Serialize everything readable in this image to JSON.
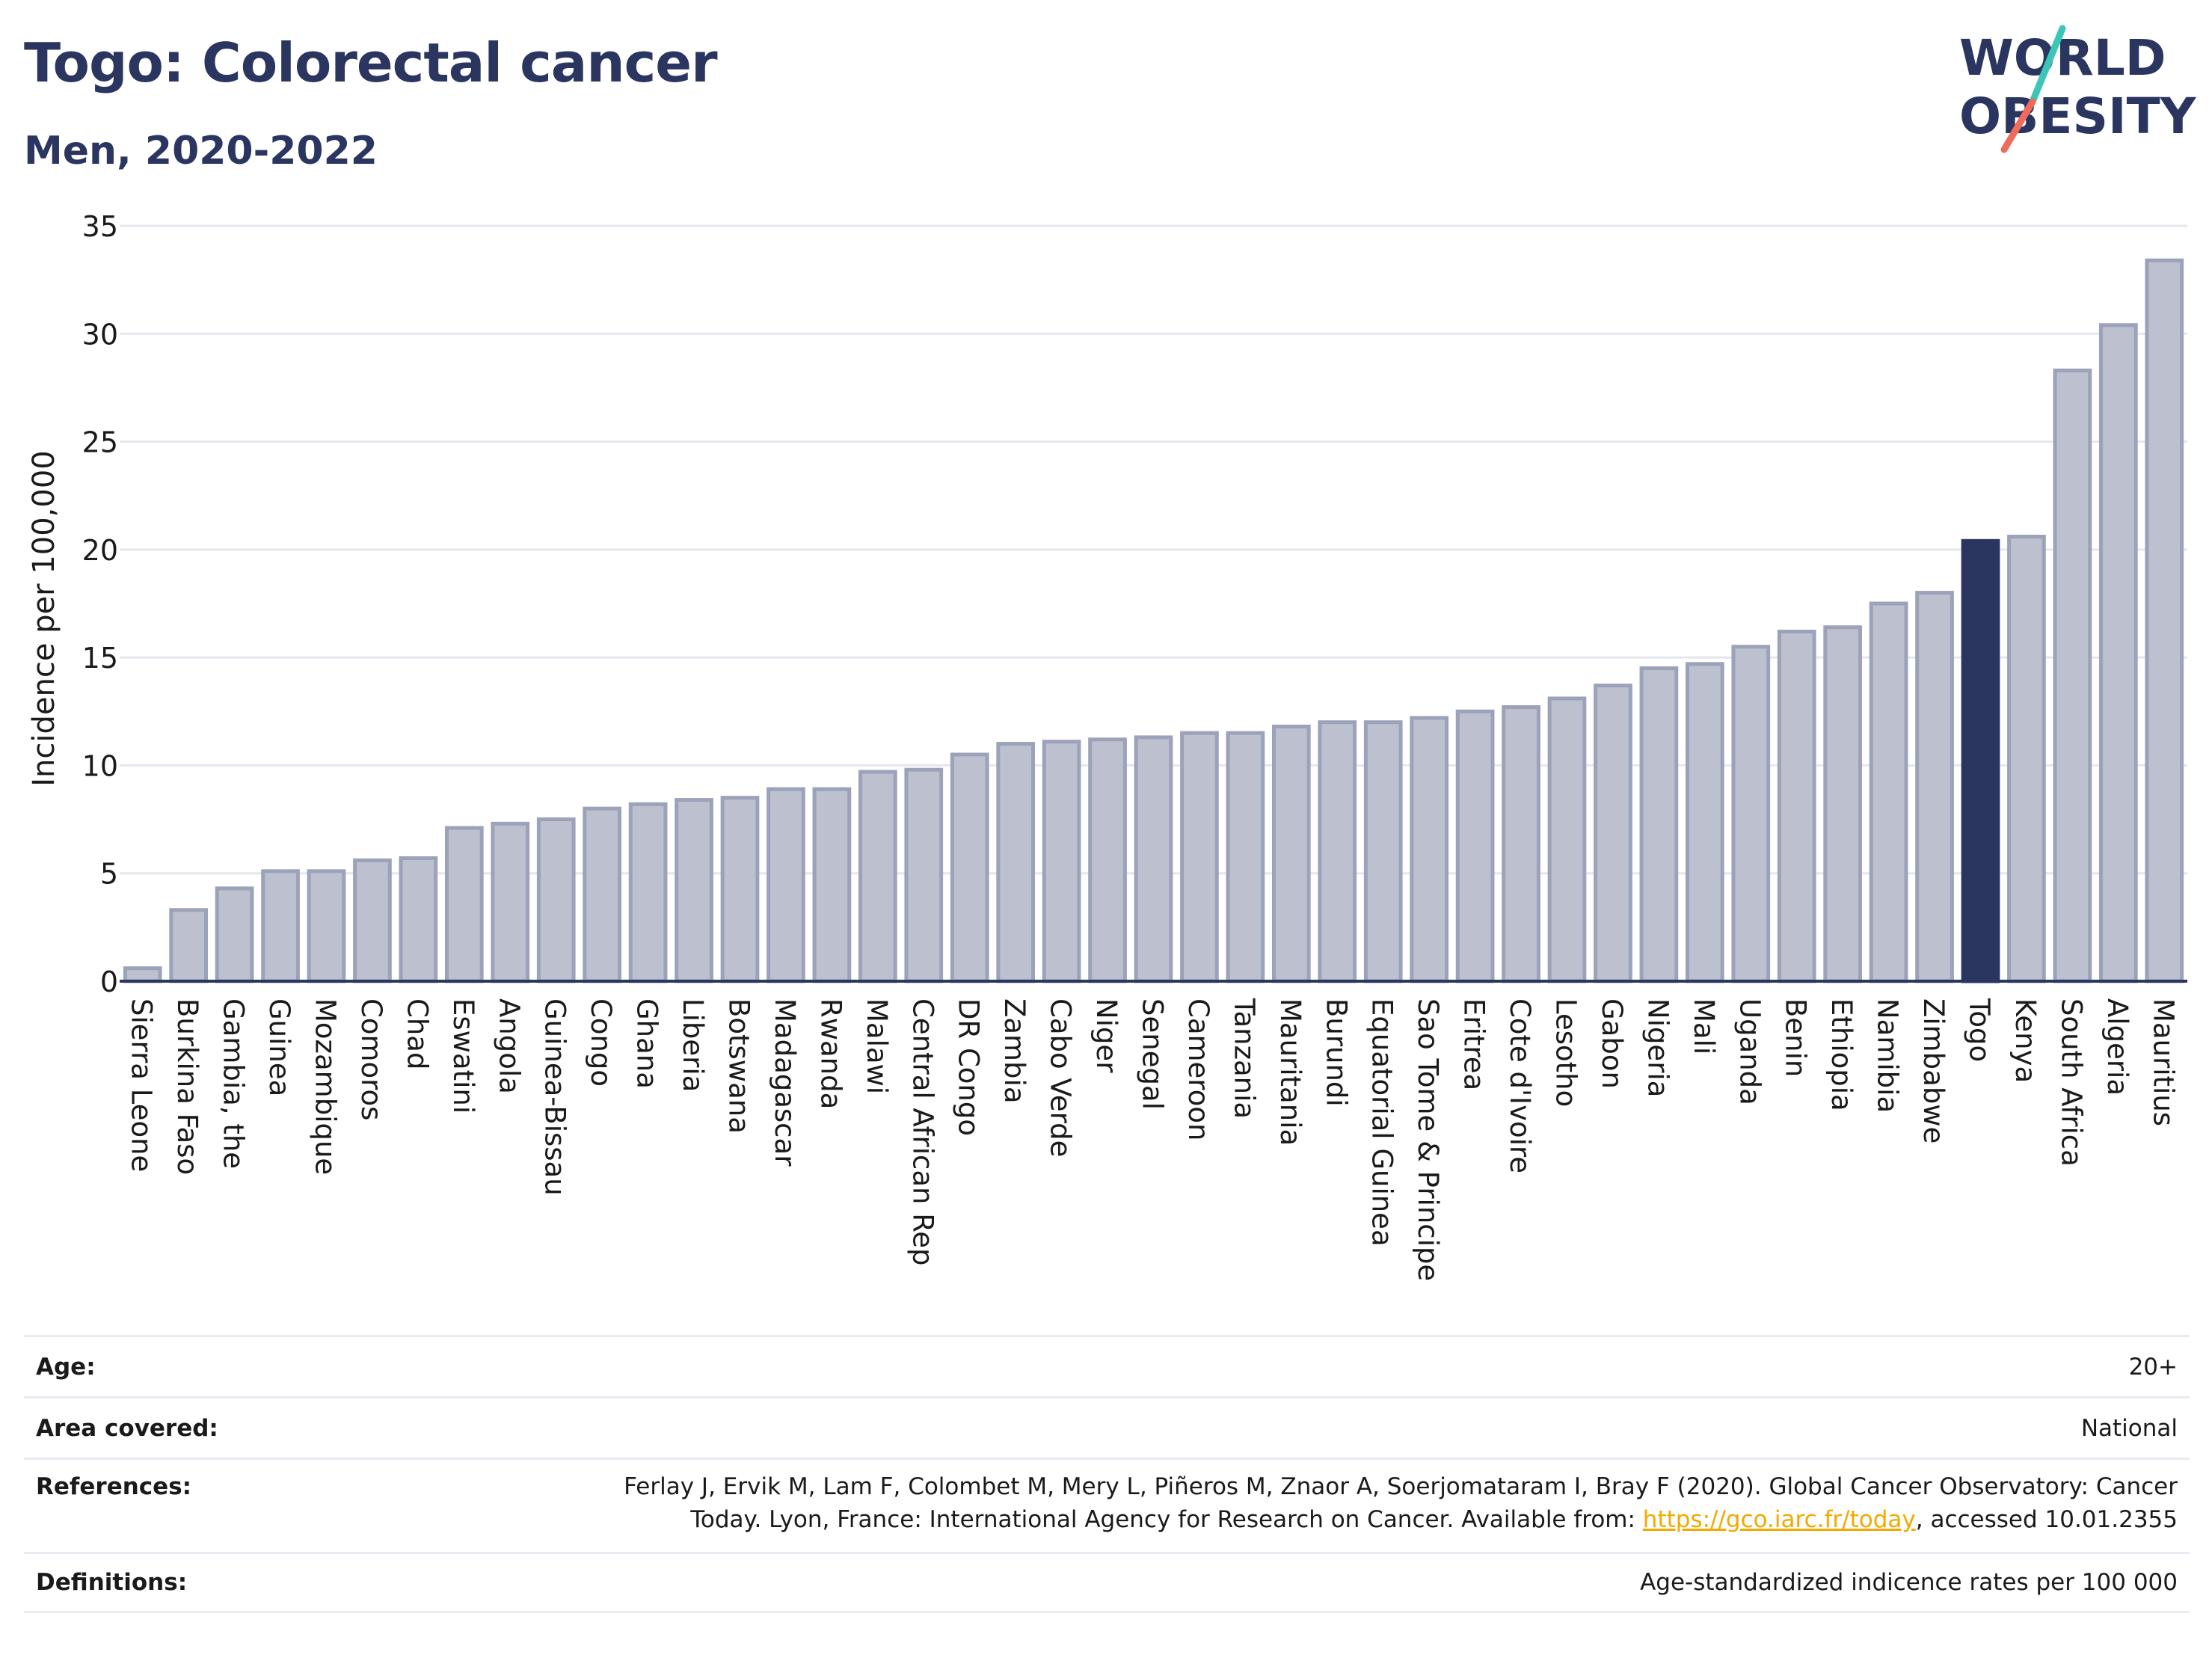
{
  "header": {
    "title": "Togo: Colorectal cancer",
    "subtitle": "Men, 2020-2022"
  },
  "logo": {
    "line1": "WORLD",
    "line2": "OBESITY",
    "text_color": "#2a3560",
    "slash_colors": [
      "#3cc6b8",
      "#f06b5b"
    ]
  },
  "colors": {
    "bar_fill": "#bcc0cf",
    "bar_stroke": "#9ba2b9",
    "highlight": "#2a3560",
    "grid": "#e5e7ee",
    "axis": "#2a3560"
  },
  "chart_data": {
    "type": "bar",
    "ylabel": "Incidence per 100,000",
    "ylim": [
      0,
      35
    ],
    "yticks": [
      0,
      5,
      10,
      15,
      20,
      25,
      30,
      35
    ],
    "highlight": "Togo",
    "categories": [
      "Sierra Leone",
      "Burkina Faso",
      "Gambia, the",
      "Guinea",
      "Mozambique",
      "Comoros",
      "Chad",
      "Eswatini",
      "Angola",
      "Guinea-Bissau",
      "Congo",
      "Ghana",
      "Liberia",
      "Botswana",
      "Madagascar",
      "Rwanda",
      "Malawi",
      "Central African Rep",
      "DR Congo",
      "Zambia",
      "Cabo Verde",
      "Niger",
      "Senegal",
      "Cameroon",
      "Tanzania",
      "Mauritania",
      "Burundi",
      "Equatorial Guinea",
      "Sao Tome & Principe",
      "Eritrea",
      "Cote d'Ivoire",
      "Lesotho",
      "Gabon",
      "Nigeria",
      "Mali",
      "Uganda",
      "Benin",
      "Ethiopia",
      "Namibia",
      "Zimbabwe",
      "Togo",
      "Kenya",
      "South Africa",
      "Algeria",
      "Mauritius"
    ],
    "values": [
      0.6,
      3.3,
      4.3,
      5.1,
      5.1,
      5.6,
      5.7,
      7.1,
      7.3,
      7.5,
      8.0,
      8.2,
      8.4,
      8.5,
      8.9,
      8.9,
      9.7,
      9.8,
      10.5,
      11.0,
      11.1,
      11.2,
      11.3,
      11.5,
      11.5,
      11.8,
      12.0,
      12.0,
      12.2,
      12.5,
      12.7,
      13.1,
      13.7,
      14.5,
      14.7,
      15.5,
      16.2,
      16.4,
      17.5,
      18.0,
      20.4,
      20.6,
      28.3,
      30.4,
      33.4
    ],
    "grid": true
  },
  "info": {
    "age_label": "Age:",
    "age_value": "20+",
    "area_label": "Area covered:",
    "area_value": "National",
    "references_label": "References:",
    "references_text_1": "Ferlay J, Ervik M, Lam F, Colombet M, Mery L, Piñeros M, Znaor A, Soerjomataram I, Bray F (2020). Global Cancer Observatory: Cancer",
    "references_text_2": "Today. Lyon, France: International Agency for Research on Cancer. Available from: ",
    "references_link": "https://gco.iarc.fr/today",
    "references_text_3": ", accessed 10.01.2355",
    "definitions_label": "Definitions:",
    "definitions_value": "Age-standardized indicence rates per 100 000"
  }
}
